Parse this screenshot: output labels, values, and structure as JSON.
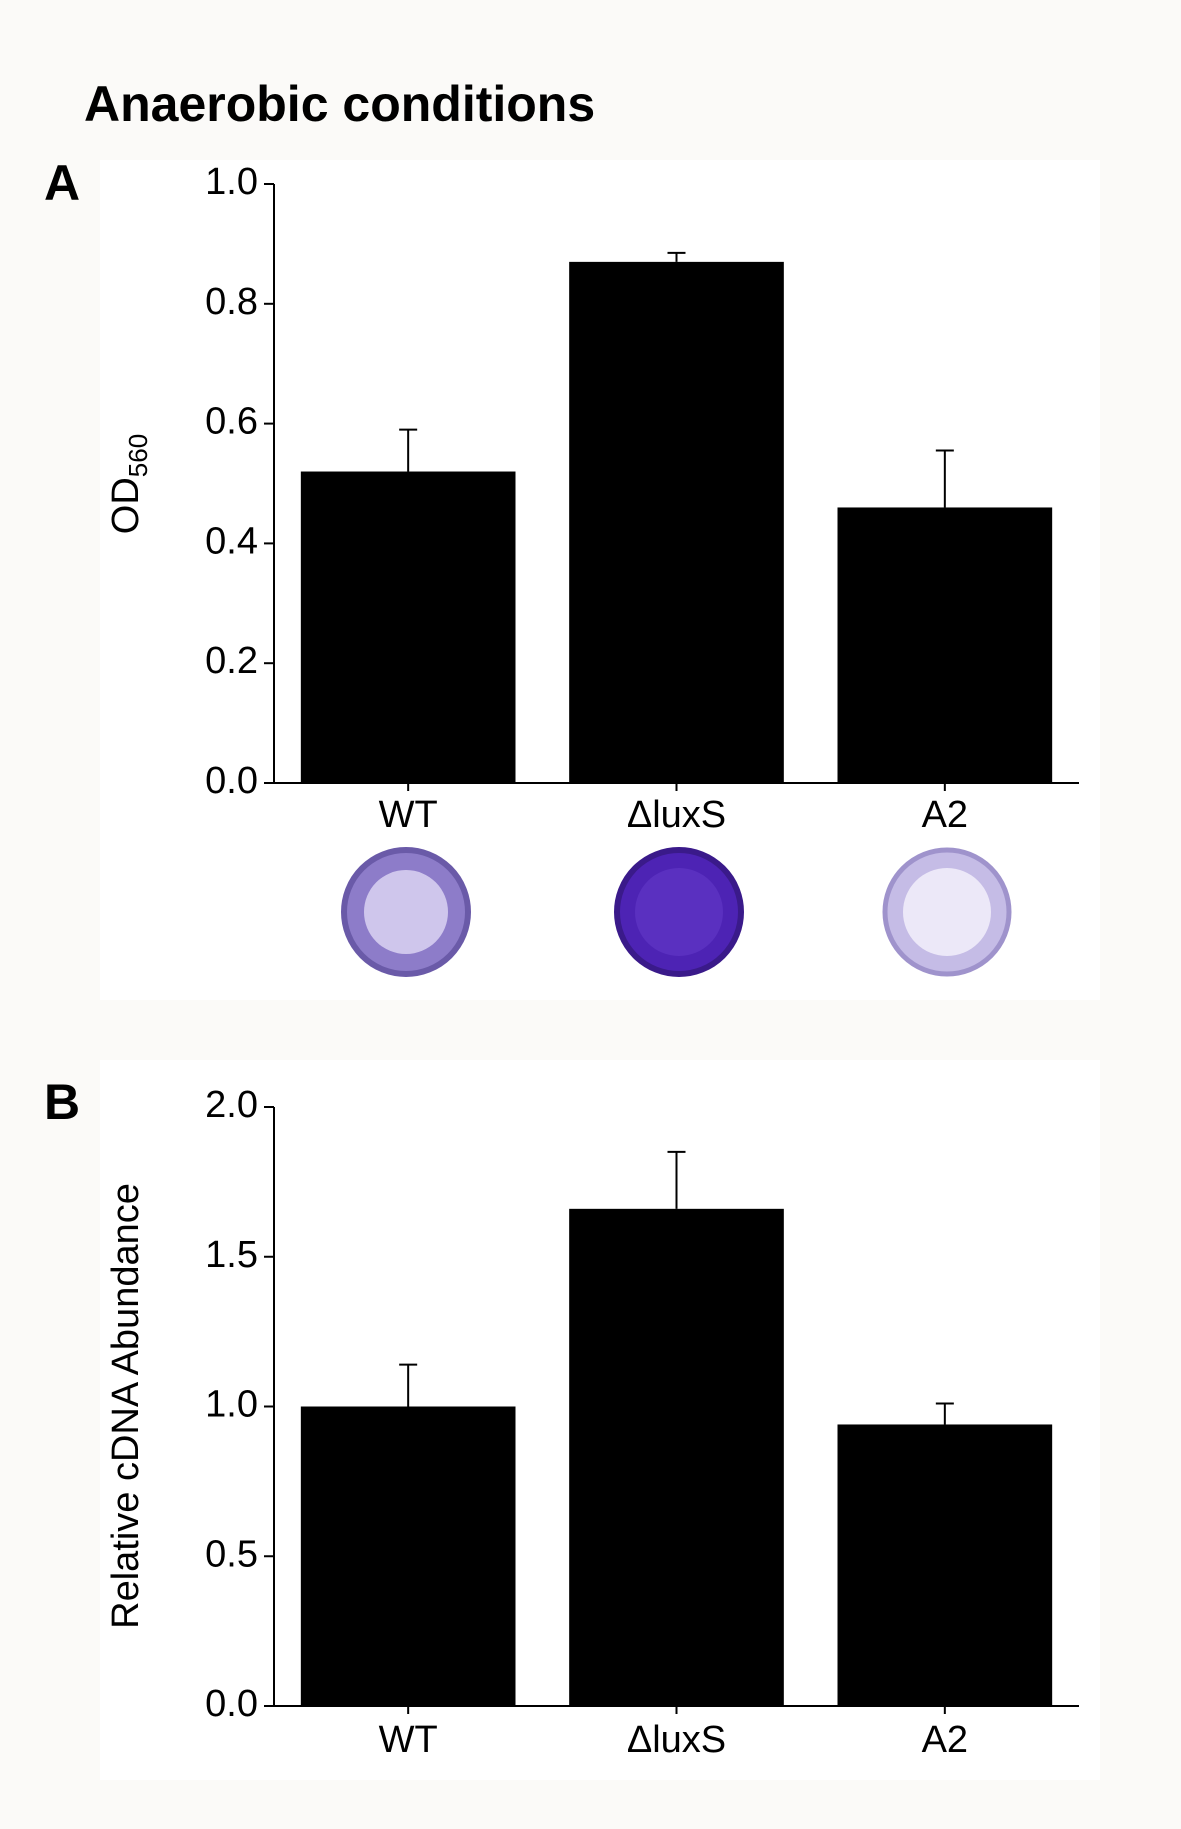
{
  "header": {
    "title": "Anaerobic conditions"
  },
  "chart_data": [
    {
      "type": "bar",
      "panel": "A",
      "y_label": "OD",
      "y_label_subscript": "560",
      "categories": [
        "WT",
        "ΔluxS",
        "A2"
      ],
      "values": [
        0.52,
        0.87,
        0.46
      ],
      "errors": [
        0.07,
        0.015,
        0.095
      ],
      "color": "#000000",
      "ylim": [
        0,
        1.0
      ],
      "yticks": [
        {
          "value": 0,
          "label": "0.0"
        },
        0.2,
        0.4,
        0.6,
        0.8,
        {
          "value": 1,
          "label": "1.0"
        }
      ]
    },
    {
      "type": "bar",
      "panel": "B",
      "y_label": "Relative cDNA Abundance",
      "categories": [
        "WT",
        "ΔluxS",
        "A2"
      ],
      "values": [
        1.0,
        1.66,
        0.94
      ],
      "errors": [
        0.14,
        0.19,
        0.07
      ],
      "color": "#000000",
      "ylim": [
        0,
        2.0
      ],
      "yticks": [
        {
          "value": 0,
          "label": "0.0"
        },
        0.5,
        {
          "value": 1,
          "label": "1.0"
        },
        1.5,
        {
          "value": 2,
          "label": "2.0"
        }
      ]
    }
  ]
}
